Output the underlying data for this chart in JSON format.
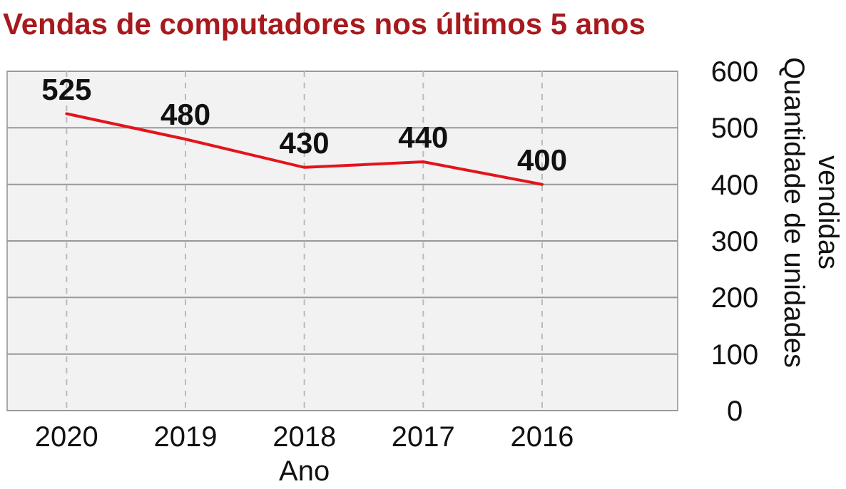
{
  "chart_data": {
    "type": "line",
    "title": "Vendas de computadores nos últimos 5 anos",
    "xlabel": "Ano",
    "ylabel": "Quantidade de unidades vendidas",
    "categories": [
      "2020",
      "2019",
      "2018",
      "2017",
      "2016"
    ],
    "series": [
      {
        "color": "#e3141c",
        "values": [
          525,
          480,
          430,
          440,
          400
        ]
      }
    ],
    "ylim": [
      0,
      600
    ],
    "yticks": [
      0,
      100,
      200,
      300,
      400,
      500,
      600
    ],
    "grid": true,
    "data_labels": true,
    "marker": "none",
    "line_style": "solid"
  }
}
